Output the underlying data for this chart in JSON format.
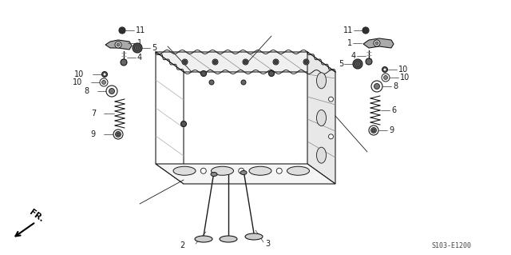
{
  "bg_color": "#ffffff",
  "line_color": "#1a1a1a",
  "diagram_code": "S103-E1200",
  "figsize": [
    6.4,
    3.19
  ],
  "dpi": 100
}
